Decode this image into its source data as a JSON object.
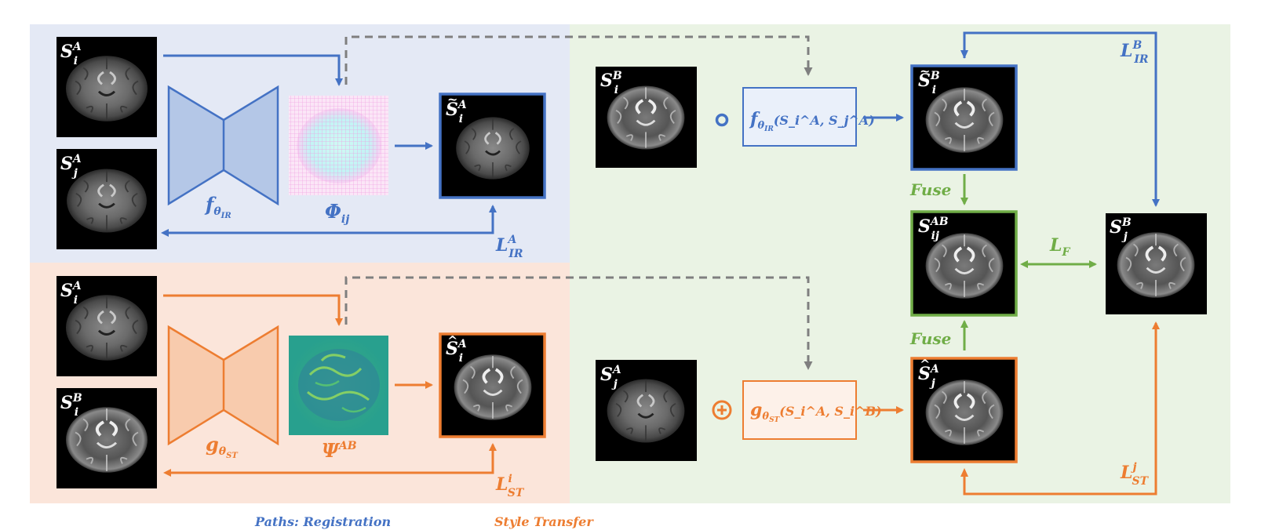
{
  "colors": {
    "blue": "#4472C4",
    "blue_light": "#E4E9F5",
    "blue_box_fill": "#EAF0FA",
    "blue_trap": "#B4C7E7",
    "orange": "#ED7D31",
    "orange_light": "#FBE5DA",
    "orange_box_fill": "#FDF1E9",
    "orange_trap": "#F8CBAD",
    "green": "#70AD47",
    "green_light": "#EAF3E4",
    "gray_dashed": "#7F7F7F"
  },
  "panels": {
    "image_registration": {
      "inputs": [
        {
          "base": "S",
          "sub": "i",
          "sup": "A"
        },
        {
          "base": "S",
          "sub": "j",
          "sup": "A"
        }
      ],
      "network": {
        "base": "f",
        "sub": "θ",
        "subsub": "IR"
      },
      "field": {
        "base": "Φ",
        "sub": "ij"
      },
      "output": {
        "base": "S",
        "sub": "i",
        "sup": "A",
        "accent": "~"
      },
      "loss": {
        "base": "L",
        "sub": "IR",
        "sup": "A"
      }
    },
    "style_transfer": {
      "inputs": [
        {
          "base": "S",
          "sub": "i",
          "sup": "A"
        },
        {
          "base": "S",
          "sub": "i",
          "sup": "B"
        }
      ],
      "network": {
        "base": "g",
        "sub": "θ",
        "subsub": "ST"
      },
      "field": {
        "base": "Ψ",
        "sup": "AB"
      },
      "output": {
        "base": "S",
        "sub": "i",
        "sup": "A",
        "accent": "^"
      },
      "loss": {
        "base": "L",
        "sub": "ST",
        "sup": "i"
      }
    },
    "fusion": {
      "top_input": {
        "base": "S",
        "sub": "i",
        "sup": "B"
      },
      "compose_op": "∘",
      "top_function": {
        "name": "f",
        "sub": "θ",
        "subsub": "IR",
        "args": "(S_i^A, S_j^A)"
      },
      "top_result": {
        "base": "S",
        "sub": "i",
        "sup": "B",
        "accent": "~"
      },
      "fuse_top": "Fuse",
      "fused": {
        "base": "S",
        "sub": "ij",
        "sup": "AB"
      },
      "fuse_bottom": "Fuse",
      "bottom_input": {
        "base": "S",
        "sub": "j",
        "sup": "A"
      },
      "add_op": "⊕",
      "bottom_function": {
        "name": "g",
        "sub": "θ",
        "subsub": "ST",
        "args": "(S_i^A, S_i^B)"
      },
      "bottom_result": {
        "base": "S",
        "sub": "j",
        "sup": "A",
        "accent": "^"
      },
      "target": {
        "base": "S",
        "sub": "j",
        "sup": "B"
      },
      "loss_fusion": {
        "base": "L",
        "sub": "F"
      },
      "loss_ir": {
        "base": "L",
        "sub": "IR",
        "sup": "B"
      },
      "loss_st": {
        "base": "L",
        "sub": "ST",
        "sup": "j"
      }
    }
  },
  "caption": {
    "left": "Paths: Registration",
    "right": "Style Transfer"
  }
}
